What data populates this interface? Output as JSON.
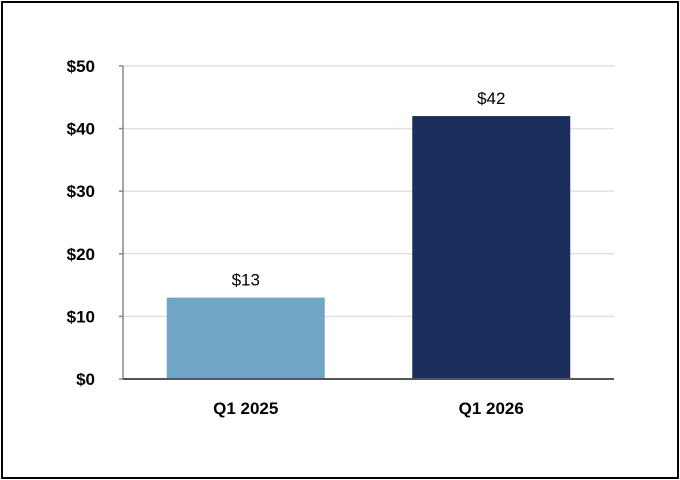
{
  "chart_data": {
    "type": "bar",
    "categories": [
      "Q1 2025",
      "Q1 2026"
    ],
    "values": [
      13,
      42
    ],
    "data_labels": [
      "$13",
      "$42"
    ],
    "y_ticks": [
      0,
      10,
      20,
      30,
      40,
      50
    ],
    "y_tick_labels": [
      "$0",
      "$10",
      "$20",
      "$30",
      "$40",
      "$50"
    ],
    "ylim": [
      0,
      50
    ],
    "grid": true,
    "legend": "none",
    "bar_colors": [
      "#71a5c5",
      "#1c2e5c"
    ],
    "grid_color": "#e0e0e0",
    "axis_color": "#888888"
  }
}
